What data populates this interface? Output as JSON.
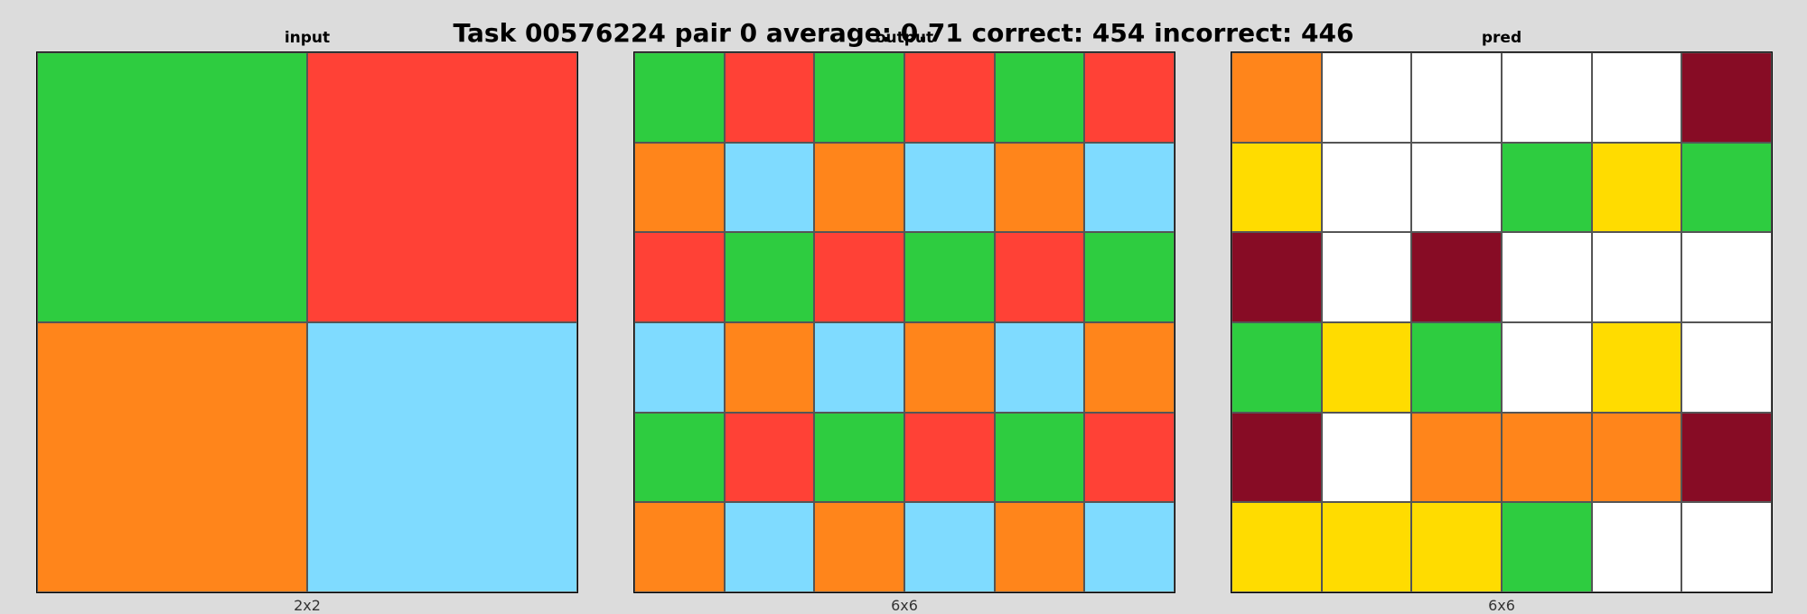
{
  "title": "Task 00576224 pair 0 average: 0.71 correct: 454 incorrect: 446",
  "palette": {
    "0": "#ffffff",
    "3": "#2ecc40",
    "2": "#ff4136",
    "7": "#ff851b",
    "8": "#7fdbff",
    "4": "#ffdc00",
    "9": "#870c25"
  },
  "panels": [
    {
      "name": "input",
      "label": "input",
      "caption": "2x2",
      "grid": [
        [
          3,
          2
        ],
        [
          7,
          8
        ]
      ]
    },
    {
      "name": "output",
      "label": "output",
      "caption": "6x6",
      "grid": [
        [
          3,
          2,
          3,
          2,
          3,
          2
        ],
        [
          7,
          8,
          7,
          8,
          7,
          8
        ],
        [
          2,
          3,
          2,
          3,
          2,
          3
        ],
        [
          8,
          7,
          8,
          7,
          8,
          7
        ],
        [
          3,
          2,
          3,
          2,
          3,
          2
        ],
        [
          7,
          8,
          7,
          8,
          7,
          8
        ]
      ]
    },
    {
      "name": "pred",
      "label": "pred",
      "caption": "6x6",
      "grid": [
        [
          7,
          0,
          0,
          0,
          0,
          9
        ],
        [
          4,
          0,
          0,
          3,
          4,
          3
        ],
        [
          9,
          0,
          9,
          0,
          0,
          0
        ],
        [
          3,
          4,
          3,
          0,
          4,
          0
        ],
        [
          9,
          0,
          7,
          7,
          7,
          9
        ],
        [
          4,
          4,
          4,
          3,
          0,
          0
        ]
      ]
    }
  ]
}
